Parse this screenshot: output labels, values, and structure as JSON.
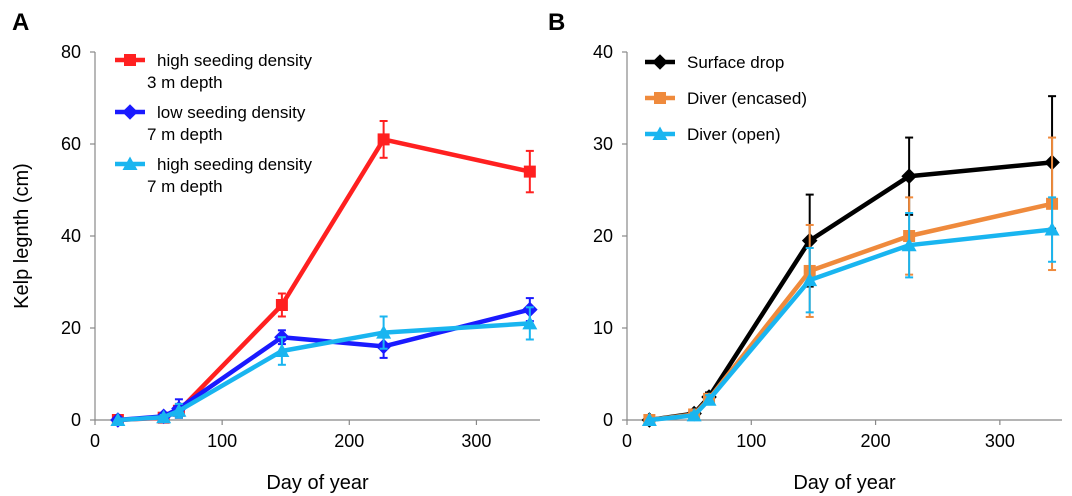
{
  "figure": {
    "panels": [
      "A",
      "B"
    ]
  },
  "chart_data": [
    {
      "panel": "A",
      "type": "line",
      "xlabel": "Day of year",
      "ylabel": "Kelp legnth  (cm)",
      "xlim": [
        0,
        350
      ],
      "ylim": [
        0,
        80
      ],
      "xticks": [
        0,
        100,
        200,
        300
      ],
      "yticks": [
        0,
        20,
        40,
        60,
        80
      ],
      "grid": false,
      "legend_position": "top-left",
      "series": [
        {
          "name": "high seeding density\n3 m depth",
          "color": "#ff2020",
          "marker": "square",
          "x": [
            18,
            54,
            66,
            147,
            227,
            342
          ],
          "y": [
            0,
            0.5,
            2,
            25,
            61,
            54
          ],
          "err": [
            0,
            0.5,
            1.5,
            2.5,
            4,
            4.5
          ]
        },
        {
          "name": "low seeding density\n7 m depth",
          "color": "#1a1aff",
          "marker": "diamond",
          "x": [
            18,
            54,
            66,
            147,
            227,
            342
          ],
          "y": [
            0,
            0.8,
            2.5,
            18,
            16,
            24
          ],
          "err": [
            0,
            0.5,
            2,
            1.5,
            2.5,
            2.5
          ]
        },
        {
          "name": "high seeding density\n7 m depth",
          "color": "#19b5f0",
          "marker": "triangle",
          "x": [
            18,
            54,
            66,
            147,
            227,
            342
          ],
          "y": [
            0,
            0.6,
            2,
            15,
            19,
            21
          ],
          "err": [
            0,
            0.5,
            1.5,
            3,
            3.5,
            3.5
          ]
        }
      ]
    },
    {
      "panel": "B",
      "type": "line",
      "xlabel": "Day of year",
      "ylabel": "",
      "xlim": [
        0,
        350
      ],
      "ylim": [
        0,
        40
      ],
      "xticks": [
        0,
        100,
        200,
        300
      ],
      "yticks": [
        0,
        10,
        20,
        30,
        40
      ],
      "grid": false,
      "legend_position": "top-left",
      "series": [
        {
          "name": "Surface drop",
          "color": "#000000",
          "marker": "diamond",
          "x": [
            18,
            54,
            66,
            147,
            227,
            342
          ],
          "y": [
            0,
            0.7,
            2.5,
            19.5,
            26.5,
            28
          ],
          "err": [
            0,
            0.3,
            0.5,
            5,
            4.2,
            7.2
          ]
        },
        {
          "name": "Diver (encased)",
          "color": "#ef8a3c",
          "marker": "square",
          "x": [
            18,
            54,
            66,
            147,
            227,
            342
          ],
          "y": [
            0,
            0.6,
            2.3,
            16.2,
            20,
            23.5
          ],
          "err": [
            0,
            0.3,
            0.5,
            5,
            4.2,
            7.2
          ]
        },
        {
          "name": "Diver (open)",
          "color": "#19b5f0",
          "marker": "triangle",
          "x": [
            18,
            54,
            66,
            147,
            227,
            342
          ],
          "y": [
            0,
            0.5,
            2.2,
            15.2,
            19,
            20.7
          ],
          "err": [
            0,
            0.3,
            0.5,
            3.5,
            3.5,
            3.5
          ]
        }
      ]
    }
  ]
}
